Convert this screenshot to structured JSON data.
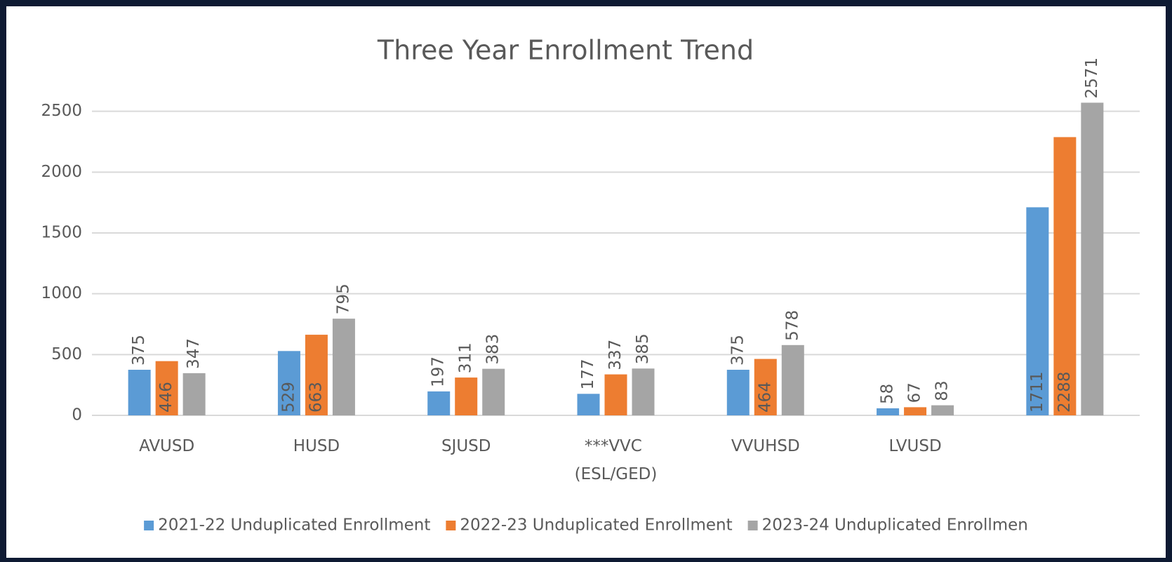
{
  "chart_data": {
    "type": "bar",
    "title": "Three Year Enrollment Trend",
    "categories": [
      "AVUSD",
      "HUSD",
      "SJUSD",
      "***VVC (ESL/GED)",
      "VVUHSD",
      "LVUSD",
      null
    ],
    "series": [
      {
        "name": "2021-22 Unduplicated Enrollment",
        "color": "#5b9bd5",
        "values": [
          375,
          529,
          197,
          177,
          375,
          58,
          1711
        ]
      },
      {
        "name": "2022-23 Unduplicated Enrollment",
        "color": "#ed7d31",
        "values": [
          446,
          663,
          311,
          337,
          464,
          67,
          2288
        ]
      },
      {
        "name": "2023-24 Unduplicated Enrollmen",
        "color": "#a5a5a5",
        "values": [
          347,
          795,
          383,
          385,
          578,
          83,
          2571
        ]
      }
    ],
    "ylim": [
      0,
      3000
    ],
    "yticks": [
      0,
      500,
      1000,
      1500,
      2000,
      2500
    ],
    "grid": true,
    "legend": "bottom"
  }
}
